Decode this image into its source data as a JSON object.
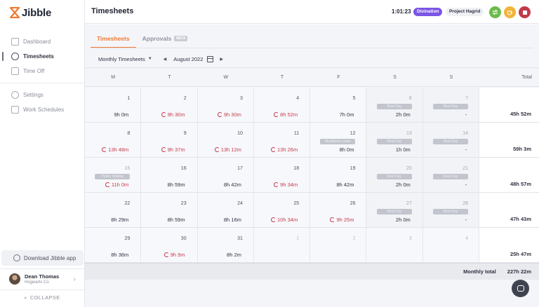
{
  "app": {
    "name": "Jibble"
  },
  "sidebar": {
    "items": [
      {
        "label": "Dashboard",
        "icon": "dashboard-icon"
      },
      {
        "label": "Timesheets",
        "icon": "clock-icon",
        "active": true
      },
      {
        "label": "Time Off",
        "icon": "calendar-off-icon"
      },
      {
        "label": "Settings",
        "icon": "settings-icon"
      },
      {
        "label": "Work Schedules",
        "icon": "schedule-icon"
      }
    ],
    "download_label": "Download Jibble app",
    "user": {
      "name": "Dean Thomas",
      "org": "Hogwarts Co"
    },
    "collapse_label": "COLLAPSE"
  },
  "header": {
    "title": "Timesheets",
    "timer": "1:01:23",
    "activity": "Divination",
    "project": "Project Hagrid",
    "colors": {
      "activity": "#7b55e6",
      "green_button": "#6cbb4b",
      "yellow_button": "#f2b33c",
      "red_button": "#c23a4a"
    }
  },
  "tabs": [
    {
      "label": "Timesheets",
      "active": true
    },
    {
      "label": "Approvals",
      "badge": "BETA"
    }
  ],
  "toolbar": {
    "view": "Monthly Timesheets",
    "month": "August 2022"
  },
  "week_headers": [
    "M",
    "T",
    "W",
    "T",
    "F",
    "S",
    "S",
    "Total"
  ],
  "weeks": [
    {
      "days": [
        {
          "day": "1",
          "hours": "9h 0m"
        },
        {
          "day": "2",
          "hours": "9h 30m",
          "warn": true
        },
        {
          "day": "3",
          "hours": "9h 30m",
          "warn": true
        },
        {
          "day": "4",
          "hours": "8h 52m",
          "warn": true
        },
        {
          "day": "5",
          "hours": "7h 0m"
        },
        {
          "day": "6",
          "hours": "2h 0m",
          "tag": "Rest Day",
          "weekend": true
        },
        {
          "day": "7",
          "hours": "-",
          "tag": "Rest Day",
          "weekend": true
        }
      ],
      "total": "45h 52m"
    },
    {
      "days": [
        {
          "day": "8",
          "hours": "13h 48m",
          "warn": true
        },
        {
          "day": "9",
          "hours": "9h 37m",
          "warn": true
        },
        {
          "day": "10",
          "hours": "13h 12m",
          "warn": true
        },
        {
          "day": "11",
          "hours": "13h 26m",
          "warn": true
        },
        {
          "day": "12",
          "hours": "8h 0m",
          "tag": "Mudblood Leave"
        },
        {
          "day": "13",
          "hours": "1h 0m",
          "tag": "Rest Day",
          "weekend": true
        },
        {
          "day": "14",
          "hours": "-",
          "tag": "Rest Day",
          "weekend": true
        }
      ],
      "total": "59h 3m"
    },
    {
      "days": [
        {
          "day": "15",
          "hours": "11h 0m",
          "warn": true,
          "tag": "Public Holiday",
          "muted_day": true
        },
        {
          "day": "16",
          "hours": "8h 59m"
        },
        {
          "day": "17",
          "hours": "8h 42m"
        },
        {
          "day": "18",
          "hours": "9h 34m",
          "warn": true
        },
        {
          "day": "19",
          "hours": "8h 42m"
        },
        {
          "day": "20",
          "hours": "2h 0m",
          "tag": "Rest Day",
          "weekend": true
        },
        {
          "day": "21",
          "hours": "-",
          "tag": "Rest Day",
          "weekend": true
        }
      ],
      "total": "48h 57m"
    },
    {
      "days": [
        {
          "day": "22",
          "hours": "8h 29m"
        },
        {
          "day": "23",
          "hours": "8h 59m"
        },
        {
          "day": "24",
          "hours": "8h 16m"
        },
        {
          "day": "25",
          "hours": "10h 34m",
          "warn": true
        },
        {
          "day": "26",
          "hours": "9h 25m",
          "warn": true
        },
        {
          "day": "27",
          "hours": "2h 0m",
          "tag": "Rest Day",
          "weekend": true
        },
        {
          "day": "28",
          "hours": "-",
          "tag": "Rest Day",
          "weekend": true
        }
      ],
      "total": "47h 43m"
    },
    {
      "days": [
        {
          "day": "29",
          "hours": "8h 36m"
        },
        {
          "day": "30",
          "hours": "9h 9m",
          "warn": true
        },
        {
          "day": "31",
          "hours": "8h 2m"
        },
        {
          "day": "1",
          "hours": "",
          "empty": true
        },
        {
          "day": "2",
          "hours": "",
          "empty": true
        },
        {
          "day": "3",
          "hours": "",
          "empty": true
        },
        {
          "day": "4",
          "hours": "",
          "empty": true
        }
      ],
      "total": "25h 47m"
    }
  ],
  "monthly_total": {
    "label": "Monthly total",
    "value": "227h 22m"
  }
}
